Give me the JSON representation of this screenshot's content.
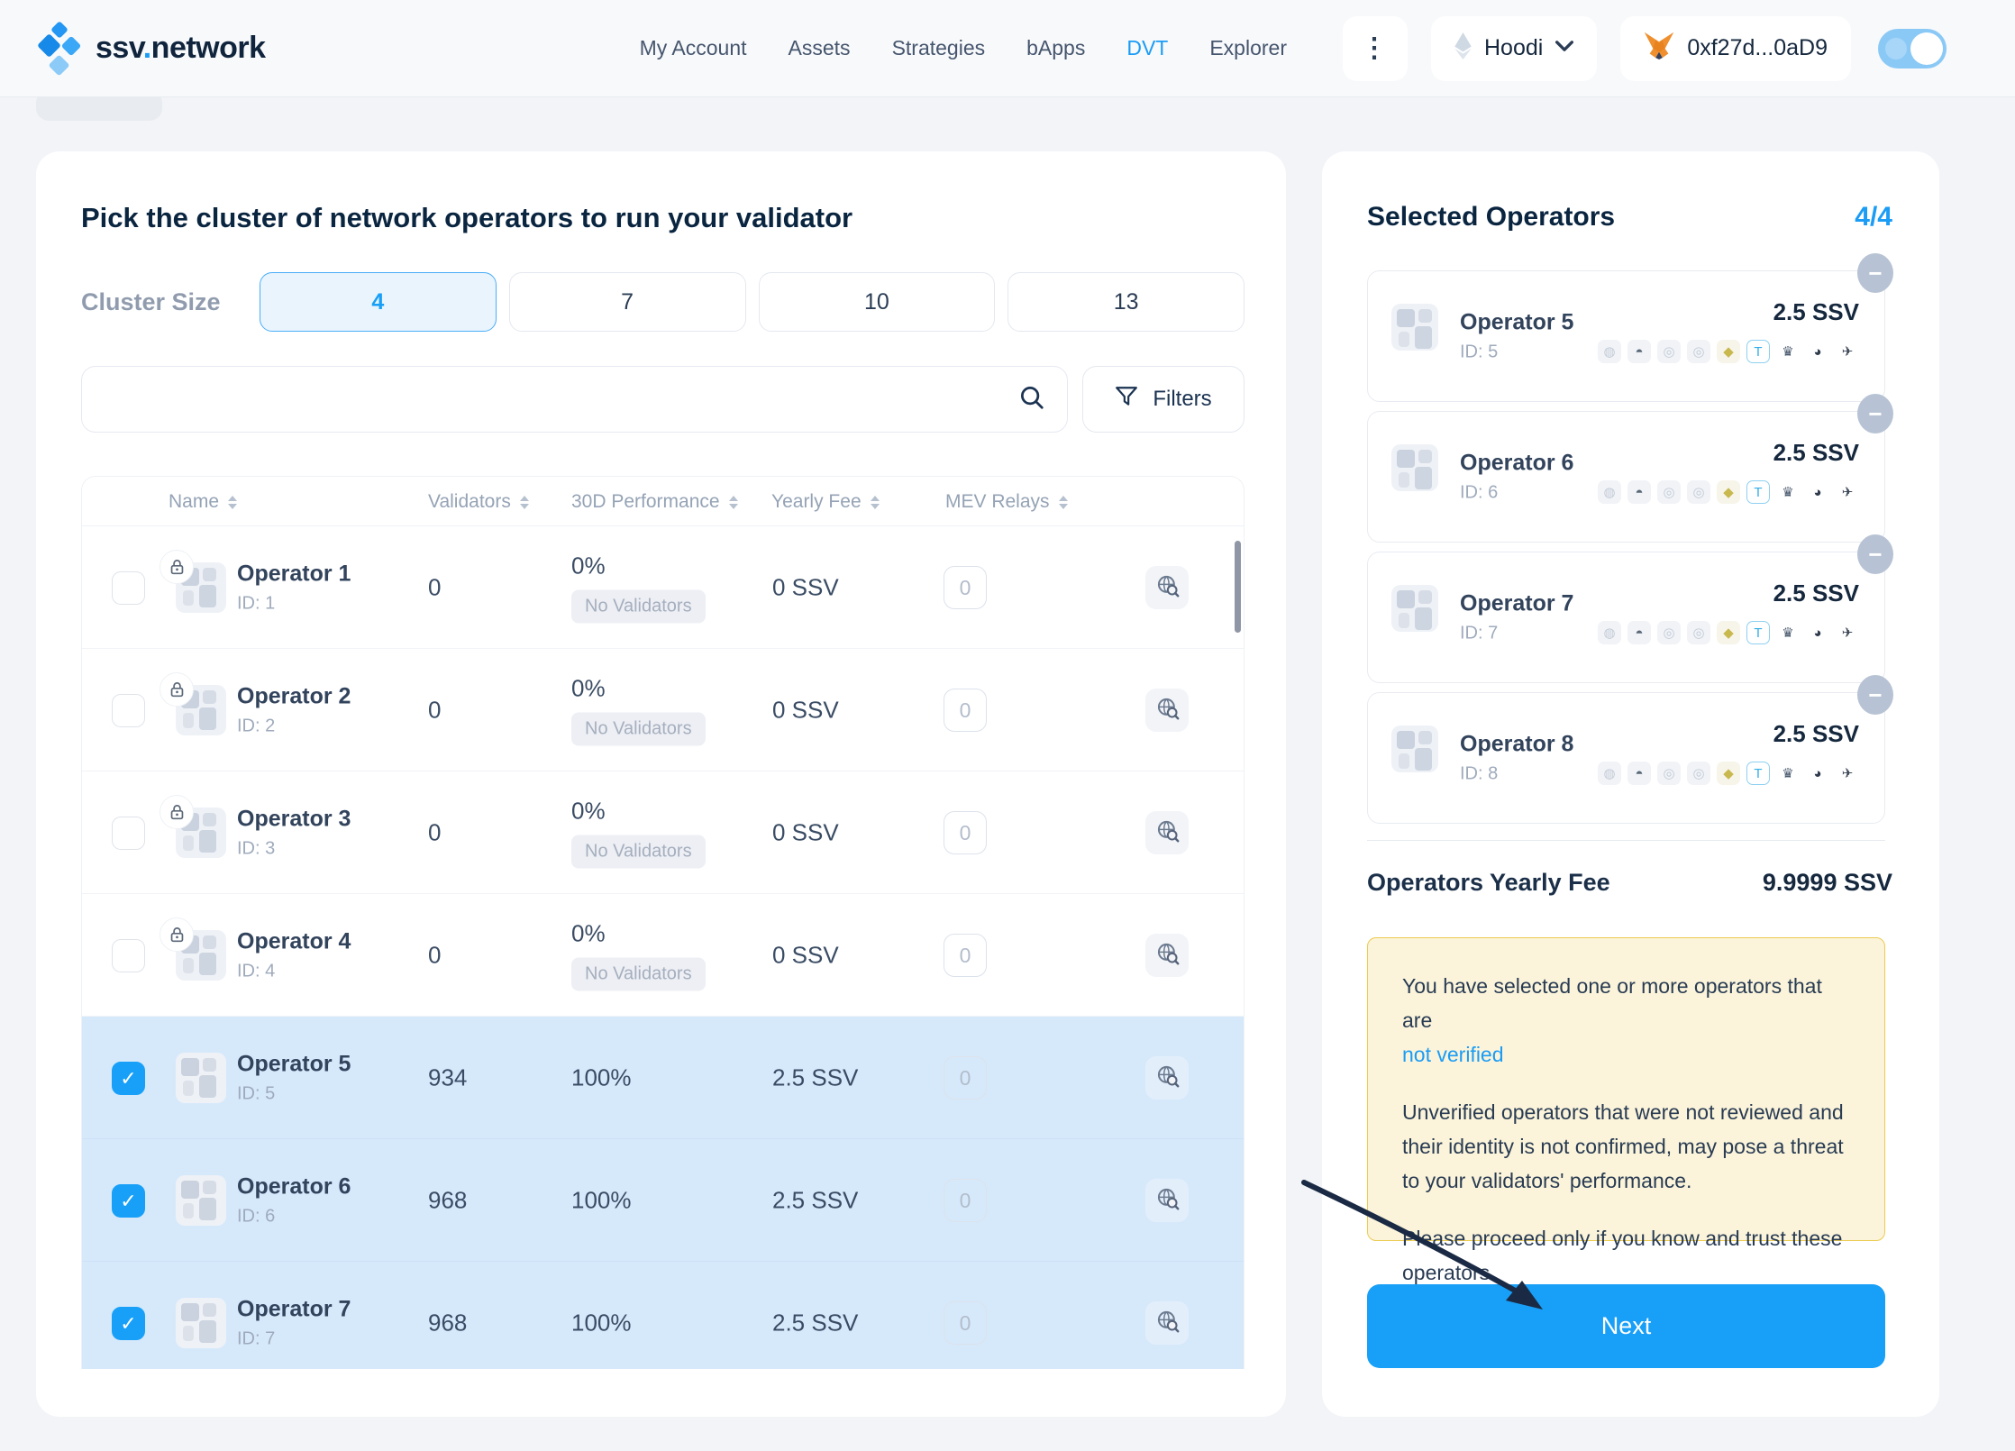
{
  "nav": {
    "brand_pre": "ssv",
    "brand_dot": ".",
    "brand_post": "network",
    "links": [
      {
        "label": "My Account",
        "active": false
      },
      {
        "label": "Assets",
        "active": false
      },
      {
        "label": "Strategies",
        "active": false
      },
      {
        "label": "bApps",
        "active": false
      },
      {
        "label": "DVT",
        "active": true
      },
      {
        "label": "Explorer",
        "active": false
      }
    ],
    "network": {
      "name": "Hoodi"
    },
    "wallet": {
      "address": "0xf27d...0aD9"
    }
  },
  "main": {
    "title": "Pick the cluster of network operators to run your validator",
    "cluster_size": {
      "label": "Cluster Size",
      "options": [
        "4",
        "7",
        "10",
        "13"
      ],
      "selected": "4"
    },
    "search": {
      "value": ""
    },
    "filters_label": "Filters",
    "table": {
      "columns": [
        "Name",
        "Validators",
        "30D Performance",
        "Yearly Fee",
        "MEV Relays"
      ],
      "rows": [
        {
          "name": "Operator 1",
          "id": "ID: 1",
          "validators": "0",
          "performance": "0%",
          "performance_badge": "No Validators",
          "fee": "0 SSV",
          "mev": "0",
          "locked": true,
          "selected": false
        },
        {
          "name": "Operator 2",
          "id": "ID: 2",
          "validators": "0",
          "performance": "0%",
          "performance_badge": "No Validators",
          "fee": "0 SSV",
          "mev": "0",
          "locked": true,
          "selected": false
        },
        {
          "name": "Operator 3",
          "id": "ID: 3",
          "validators": "0",
          "performance": "0%",
          "performance_badge": "No Validators",
          "fee": "0 SSV",
          "mev": "0",
          "locked": true,
          "selected": false
        },
        {
          "name": "Operator 4",
          "id": "ID: 4",
          "validators": "0",
          "performance": "0%",
          "performance_badge": "No Validators",
          "fee": "0 SSV",
          "mev": "0",
          "locked": true,
          "selected": false
        },
        {
          "name": "Operator 5",
          "id": "ID: 5",
          "validators": "934",
          "performance": "100%",
          "performance_badge": "",
          "fee": "2.5 SSV",
          "mev": "0",
          "locked": false,
          "selected": true
        },
        {
          "name": "Operator 6",
          "id": "ID: 6",
          "validators": "968",
          "performance": "100%",
          "performance_badge": "",
          "fee": "2.5 SSV",
          "mev": "0",
          "locked": false,
          "selected": true
        },
        {
          "name": "Operator 7",
          "id": "ID: 7",
          "validators": "968",
          "performance": "100%",
          "performance_badge": "",
          "fee": "2.5 SSV",
          "mev": "0",
          "locked": false,
          "selected": true
        }
      ]
    }
  },
  "sidebar": {
    "title": "Selected Operators",
    "count": "4/4",
    "selected": [
      {
        "name": "Operator 5",
        "id": "ID: 5",
        "fee": "2.5 SSV"
      },
      {
        "name": "Operator 6",
        "id": "ID: 6",
        "fee": "2.5 SSV"
      },
      {
        "name": "Operator 7",
        "id": "ID: 7",
        "fee": "2.5 SSV"
      },
      {
        "name": "Operator 8",
        "id": "ID: 8",
        "fee": "2.5 SSV"
      }
    ],
    "relay_icons": [
      {
        "glyph": "◍",
        "color": "#c2cbd7",
        "bg": "#f1f3f7",
        "border": ""
      },
      {
        "glyph": "◓",
        "color": "#5a6878",
        "bg": "#f1f3f7",
        "border": ""
      },
      {
        "glyph": "◎",
        "color": "#c2cbd7",
        "bg": "#f1f3f7",
        "border": ""
      },
      {
        "glyph": "◎",
        "color": "#c2cbd7",
        "bg": "#f1f3f7",
        "border": ""
      },
      {
        "glyph": "◆",
        "color": "#c8b84e",
        "bg": "#f7f5ea",
        "border": ""
      },
      {
        "glyph": "T",
        "color": "#35aee8",
        "bg": "#ffffff",
        "border": "#8fd0f0"
      },
      {
        "glyph": "♛",
        "color": "#4a5a6e",
        "bg": "transparent",
        "border": ""
      },
      {
        "glyph": "◕",
        "color": "#2e3a4c",
        "bg": "transparent",
        "border": ""
      },
      {
        "glyph": "✈",
        "color": "#3c4656",
        "bg": "transparent",
        "border": ""
      }
    ],
    "yearly_fee_label": "Operators Yearly Fee",
    "yearly_fee_value": "9.9999 SSV",
    "warning": {
      "line1": "You have selected one or more operators that are",
      "link": "not verified",
      "para1": "Unverified operators that were not reviewed and their identity is not confirmed, may pose a threat to your validators' performance.",
      "para2": "Please proceed only if you know and trust these operators."
    },
    "next_label": "Next"
  },
  "glyphs": {
    "check": "✓",
    "minus": "−",
    "menu_dots": "⋮"
  },
  "colors": {
    "accent_blue": "#189ff7",
    "selected_row": "#d6e9fb",
    "warning_bg": "#fbf4da",
    "warning_border": "#eccb52",
    "dark_navy": "#0a2540"
  }
}
